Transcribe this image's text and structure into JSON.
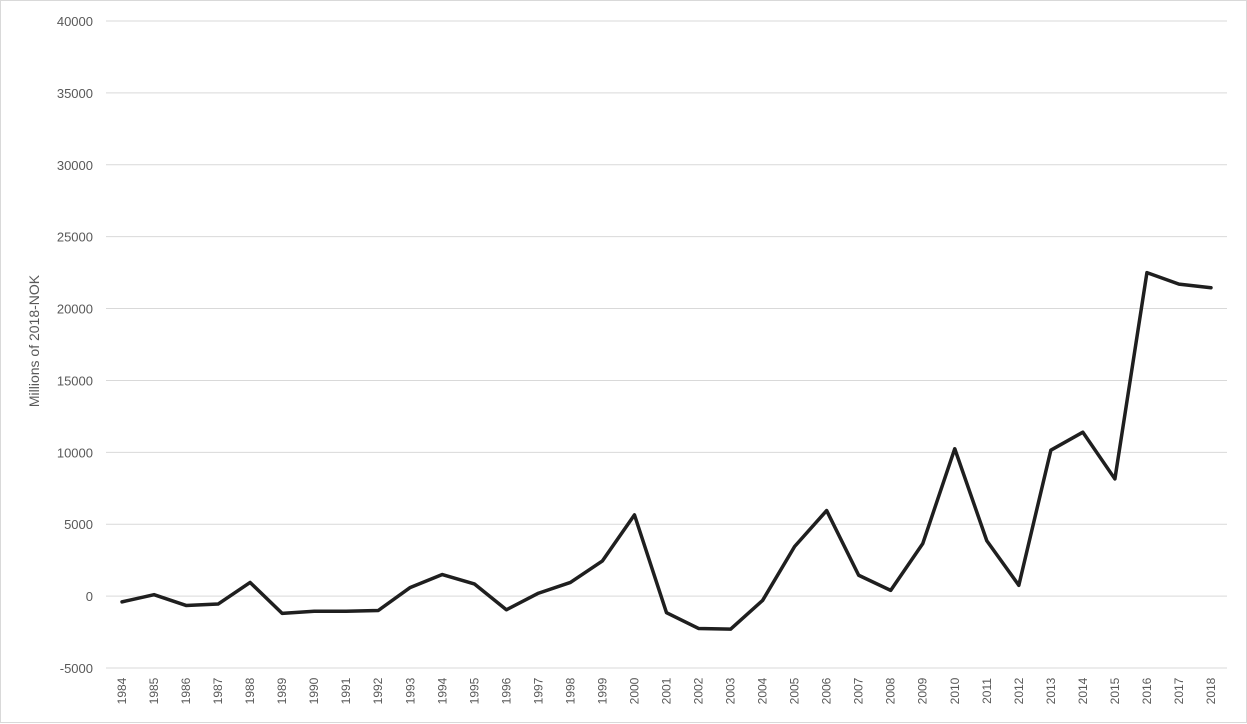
{
  "chart_data": {
    "type": "line",
    "title": "",
    "xlabel": "",
    "ylabel": "Millions of 2018-NOK",
    "ylim": [
      -5000,
      40000
    ],
    "yticks": [
      -5000,
      0,
      5000,
      10000,
      15000,
      20000,
      25000,
      30000,
      35000,
      40000
    ],
    "grid": true,
    "legend": "none",
    "line_color": "#1f1f1f",
    "categories": [
      "1984",
      "1985",
      "1986",
      "1987",
      "1988",
      "1989",
      "1990",
      "1991",
      "1992",
      "1993",
      "1994",
      "1995",
      "1996",
      "1997",
      "1998",
      "1999",
      "2000",
      "2001",
      "2002",
      "2003",
      "2004",
      "2005",
      "2006",
      "2007",
      "2008",
      "2009",
      "2010",
      "2011",
      "2012",
      "2013",
      "2014",
      "2015",
      "2016",
      "2017",
      "2018"
    ],
    "series": [
      {
        "values": [
          -400,
          100,
          -650,
          -550,
          950,
          -1200,
          -1050,
          -1050,
          -1000,
          600,
          1500,
          850,
          -950,
          200,
          950,
          2450,
          5650,
          -1150,
          -2250,
          -2300,
          -300,
          3450,
          5950,
          1450,
          400,
          3650,
          10250,
          3850,
          750,
          10150,
          11400,
          8150,
          22500,
          21700,
          21450
        ]
      }
    ]
  }
}
